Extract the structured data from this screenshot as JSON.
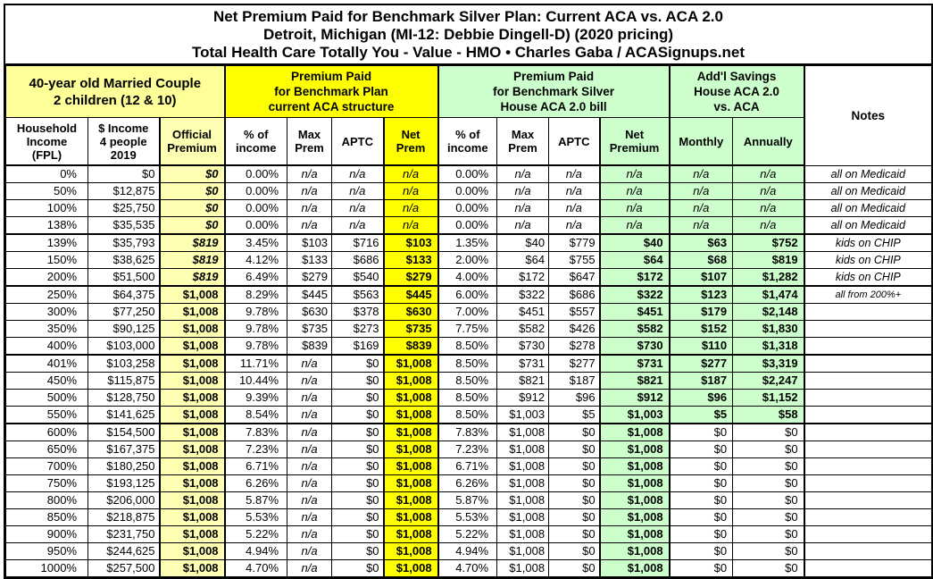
{
  "title": {
    "line1": "Net Premium Paid for Benchmark Silver Plan: Current ACA vs. ACA 2.0",
    "line2": "Detroit, Michigan (MI-12: Debbie Dingell-D) (2020 pricing)",
    "line3": "Total Health Care Totally You - Value - HMO • Charles Gaba / ACASignups.net"
  },
  "sections": {
    "household": "40-year old Married Couple\n2 children (12 & 10)",
    "aca": "Premium Paid\nfor Benchmark Plan\ncurrent ACA structure",
    "aca2": "Premium Paid\nfor Benchmark Silver\nHouse ACA 2.0 bill",
    "savings": "Add'l Savings\nHouse ACA 2.0\nvs. ACA",
    "notes": "Notes"
  },
  "columns": [
    "Household\nIncome\n(FPL)",
    "$ Income\n4 people\n2019",
    "Official\nPremium",
    "% of\nincome",
    "Max\nPrem",
    "APTC",
    "Net\nPrem",
    "% of\nincome",
    "Max\nPrem",
    "APTC",
    "Net\nPremium",
    "Monthly",
    "Annually"
  ],
  "colors": {
    "bright_yellow": "#FFFF00",
    "light_yellow": "#FFFF99",
    "pale_yellow": "#FFFFB3",
    "light_green": "#CCFFCC",
    "border": "#000000"
  },
  "rows": [
    {
      "cells": [
        "0%",
        "$0",
        "$0",
        "0.00%",
        "n/a",
        "n/a",
        "n/a",
        "0.00%",
        "n/a",
        "n/a",
        "n/a",
        "n/a",
        "n/a",
        "all on Medicaid"
      ],
      "official_italic": true,
      "green_savings": true,
      "thick_top": false,
      "note_small": false
    },
    {
      "cells": [
        "50%",
        "$12,875",
        "$0",
        "0.00%",
        "n/a",
        "n/a",
        "n/a",
        "0.00%",
        "n/a",
        "n/a",
        "n/a",
        "n/a",
        "n/a",
        "all on Medicaid"
      ],
      "official_italic": true,
      "green_savings": true,
      "thick_top": false,
      "note_small": false
    },
    {
      "cells": [
        "100%",
        "$25,750",
        "$0",
        "0.00%",
        "n/a",
        "n/a",
        "n/a",
        "0.00%",
        "n/a",
        "n/a",
        "n/a",
        "n/a",
        "n/a",
        "all on Medicaid"
      ],
      "official_italic": true,
      "green_savings": true,
      "thick_top": false,
      "note_small": false
    },
    {
      "cells": [
        "138%",
        "$35,535",
        "$0",
        "0.00%",
        "n/a",
        "n/a",
        "n/a",
        "0.00%",
        "n/a",
        "n/a",
        "n/a",
        "n/a",
        "n/a",
        "all on Medicaid"
      ],
      "official_italic": true,
      "green_savings": true,
      "thick_top": false,
      "note_small": false
    },
    {
      "cells": [
        "139%",
        "$35,793",
        "$819",
        "3.45%",
        "$103",
        "$716",
        "$103",
        "1.35%",
        "$40",
        "$779",
        "$40",
        "$63",
        "$752",
        "kids on CHIP"
      ],
      "official_italic": true,
      "green_savings": true,
      "thick_top": true,
      "note_small": false
    },
    {
      "cells": [
        "150%",
        "$38,625",
        "$819",
        "4.12%",
        "$133",
        "$686",
        "$133",
        "2.00%",
        "$64",
        "$755",
        "$64",
        "$68",
        "$819",
        "kids on CHIP"
      ],
      "official_italic": true,
      "green_savings": true,
      "thick_top": false,
      "note_small": false
    },
    {
      "cells": [
        "200%",
        "$51,500",
        "$819",
        "6.49%",
        "$279",
        "$540",
        "$279",
        "4.00%",
        "$172",
        "$647",
        "$172",
        "$107",
        "$1,282",
        "kids on CHIP"
      ],
      "official_italic": true,
      "green_savings": true,
      "thick_top": false,
      "note_small": false
    },
    {
      "cells": [
        "250%",
        "$64,375",
        "$1,008",
        "8.29%",
        "$445",
        "$563",
        "$445",
        "6.00%",
        "$322",
        "$686",
        "$322",
        "$123",
        "$1,474",
        "all from 200%+"
      ],
      "official_italic": false,
      "green_savings": true,
      "thick_top": true,
      "note_small": true
    },
    {
      "cells": [
        "300%",
        "$77,250",
        "$1,008",
        "9.78%",
        "$630",
        "$378",
        "$630",
        "7.00%",
        "$451",
        "$557",
        "$451",
        "$179",
        "$2,148",
        ""
      ],
      "official_italic": false,
      "green_savings": true,
      "thick_top": false,
      "note_small": false
    },
    {
      "cells": [
        "350%",
        "$90,125",
        "$1,008",
        "9.78%",
        "$735",
        "$273",
        "$735",
        "7.75%",
        "$582",
        "$426",
        "$582",
        "$152",
        "$1,830",
        ""
      ],
      "official_italic": false,
      "green_savings": true,
      "thick_top": false,
      "note_small": false
    },
    {
      "cells": [
        "400%",
        "$103,000",
        "$1,008",
        "9.78%",
        "$839",
        "$169",
        "$839",
        "8.50%",
        "$730",
        "$278",
        "$730",
        "$110",
        "$1,318",
        ""
      ],
      "official_italic": false,
      "green_savings": true,
      "thick_top": false,
      "note_small": false
    },
    {
      "cells": [
        "401%",
        "$103,258",
        "$1,008",
        "11.71%",
        "n/a",
        "$0",
        "$1,008",
        "8.50%",
        "$731",
        "$277",
        "$731",
        "$277",
        "$3,319",
        ""
      ],
      "official_italic": false,
      "green_savings": true,
      "thick_top": true,
      "note_small": false
    },
    {
      "cells": [
        "450%",
        "$115,875",
        "$1,008",
        "10.44%",
        "n/a",
        "$0",
        "$1,008",
        "8.50%",
        "$821",
        "$187",
        "$821",
        "$187",
        "$2,247",
        ""
      ],
      "official_italic": false,
      "green_savings": true,
      "thick_top": false,
      "note_small": false
    },
    {
      "cells": [
        "500%",
        "$128,750",
        "$1,008",
        "9.39%",
        "n/a",
        "$0",
        "$1,008",
        "8.50%",
        "$912",
        "$96",
        "$912",
        "$96",
        "$1,152",
        ""
      ],
      "official_italic": false,
      "green_savings": true,
      "thick_top": false,
      "note_small": false
    },
    {
      "cells": [
        "550%",
        "$141,625",
        "$1,008",
        "8.54%",
        "n/a",
        "$0",
        "$1,008",
        "8.50%",
        "$1,003",
        "$5",
        "$1,003",
        "$5",
        "$58",
        ""
      ],
      "official_italic": false,
      "green_savings": true,
      "thick_top": false,
      "note_small": false
    },
    {
      "cells": [
        "600%",
        "$154,500",
        "$1,008",
        "7.83%",
        "n/a",
        "$0",
        "$1,008",
        "7.83%",
        "$1,008",
        "$0",
        "$1,008",
        "$0",
        "$0",
        ""
      ],
      "official_italic": false,
      "green_savings": false,
      "thick_top": true,
      "note_small": false
    },
    {
      "cells": [
        "650%",
        "$167,375",
        "$1,008",
        "7.23%",
        "n/a",
        "$0",
        "$1,008",
        "7.23%",
        "$1,008",
        "$0",
        "$1,008",
        "$0",
        "$0",
        ""
      ],
      "official_italic": false,
      "green_savings": false,
      "thick_top": false,
      "note_small": false
    },
    {
      "cells": [
        "700%",
        "$180,250",
        "$1,008",
        "6.71%",
        "n/a",
        "$0",
        "$1,008",
        "6.71%",
        "$1,008",
        "$0",
        "$1,008",
        "$0",
        "$0",
        ""
      ],
      "official_italic": false,
      "green_savings": false,
      "thick_top": false,
      "note_small": false
    },
    {
      "cells": [
        "750%",
        "$193,125",
        "$1,008",
        "6.26%",
        "n/a",
        "$0",
        "$1,008",
        "6.26%",
        "$1,008",
        "$0",
        "$1,008",
        "$0",
        "$0",
        ""
      ],
      "official_italic": false,
      "green_savings": false,
      "thick_top": false,
      "note_small": false
    },
    {
      "cells": [
        "800%",
        "$206,000",
        "$1,008",
        "5.87%",
        "n/a",
        "$0",
        "$1,008",
        "5.87%",
        "$1,008",
        "$0",
        "$1,008",
        "$0",
        "$0",
        ""
      ],
      "official_italic": false,
      "green_savings": false,
      "thick_top": false,
      "note_small": false
    },
    {
      "cells": [
        "850%",
        "$218,875",
        "$1,008",
        "5.53%",
        "n/a",
        "$0",
        "$1,008",
        "5.53%",
        "$1,008",
        "$0",
        "$1,008",
        "$0",
        "$0",
        ""
      ],
      "official_italic": false,
      "green_savings": false,
      "thick_top": false,
      "note_small": false
    },
    {
      "cells": [
        "900%",
        "$231,750",
        "$1,008",
        "5.22%",
        "n/a",
        "$0",
        "$1,008",
        "5.22%",
        "$1,008",
        "$0",
        "$1,008",
        "$0",
        "$0",
        ""
      ],
      "official_italic": false,
      "green_savings": false,
      "thick_top": false,
      "note_small": false
    },
    {
      "cells": [
        "950%",
        "$244,625",
        "$1,008",
        "4.94%",
        "n/a",
        "$0",
        "$1,008",
        "4.94%",
        "$1,008",
        "$0",
        "$1,008",
        "$0",
        "$0",
        ""
      ],
      "official_italic": false,
      "green_savings": false,
      "thick_top": false,
      "note_small": false
    },
    {
      "cells": [
        "1000%",
        "$257,500",
        "$1,008",
        "4.70%",
        "n/a",
        "$0",
        "$1,008",
        "4.70%",
        "$1,008",
        "$0",
        "$1,008",
        "$0",
        "$0",
        ""
      ],
      "official_italic": false,
      "green_savings": false,
      "thick_top": false,
      "note_small": false
    }
  ]
}
